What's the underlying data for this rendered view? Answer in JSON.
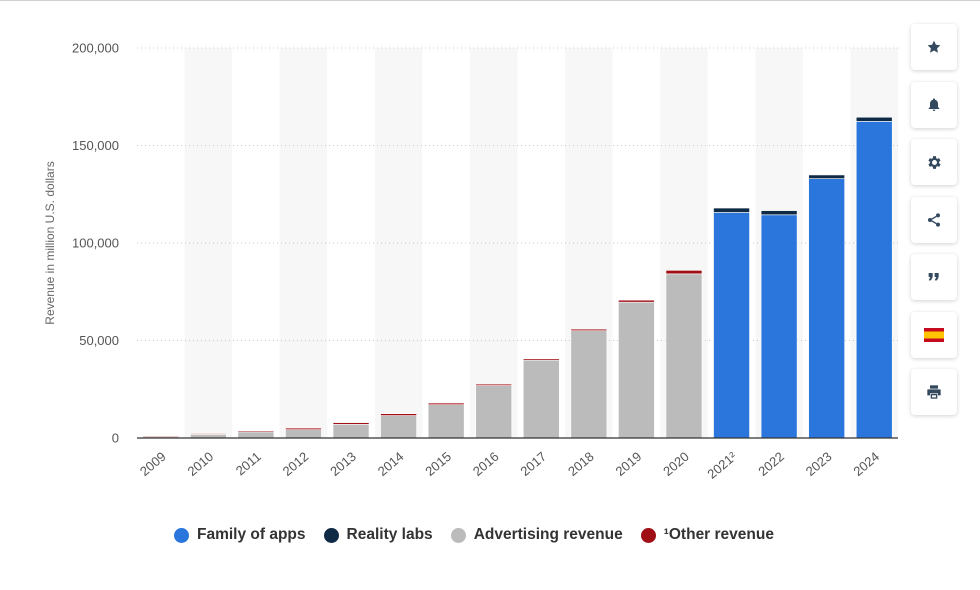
{
  "chart_data": {
    "type": "bar",
    "stacked": true,
    "ylabel": "Revenue in million U.S. dollars",
    "xlabel": "",
    "ylim": [
      0,
      200000
    ],
    "yticks": [
      0,
      50000,
      100000,
      150000,
      200000
    ],
    "ytick_labels": [
      "0",
      "50,000",
      "100,000",
      "150,000",
      "200,000"
    ],
    "grid": "horizontal dotted",
    "legend_position": "bottom",
    "categories": [
      "2009",
      "2010",
      "2011",
      "2012",
      "2013",
      "2014",
      "2015",
      "2016",
      "2017",
      "2018",
      "2019",
      "2020",
      "2021²",
      "2022",
      "2023",
      "2024"
    ],
    "series": [
      {
        "name": "Family of apps",
        "color": "#2a76dd",
        "values": [
          null,
          null,
          null,
          null,
          null,
          null,
          null,
          null,
          null,
          null,
          null,
          null,
          115655,
          114450,
          133006,
          162355
        ]
      },
      {
        "name": "Reality labs",
        "color": "#0f2a44",
        "values": [
          null,
          null,
          null,
          null,
          null,
          null,
          null,
          null,
          null,
          null,
          null,
          null,
          2274,
          2159,
          1896,
          2146
        ]
      },
      {
        "name": "Advertising revenue",
        "color": "#bbbbbb",
        "values": [
          764,
          1868,
          3154,
          4279,
          6986,
          11492,
          17079,
          26885,
          39942,
          55013,
          69655,
          84169,
          null,
          null,
          null,
          null
        ]
      },
      {
        "name": "¹Other revenue",
        "color": "#a10f16",
        "values": [
          13,
          106,
          557,
          810,
          888,
          974,
          849,
          753,
          711,
          825,
          1042,
          1804,
          null,
          null,
          null,
          null
        ]
      }
    ]
  },
  "toolbar": {
    "buttons": [
      {
        "name": "favorite",
        "icon": "star-icon"
      },
      {
        "name": "notification",
        "icon": "bell-icon"
      },
      {
        "name": "settings",
        "icon": "gear-icon"
      },
      {
        "name": "share",
        "icon": "share-icon"
      },
      {
        "name": "cite",
        "icon": "quote-icon"
      },
      {
        "name": "language",
        "icon": "spain-flag-icon"
      },
      {
        "name": "print",
        "icon": "printer-icon"
      }
    ]
  }
}
